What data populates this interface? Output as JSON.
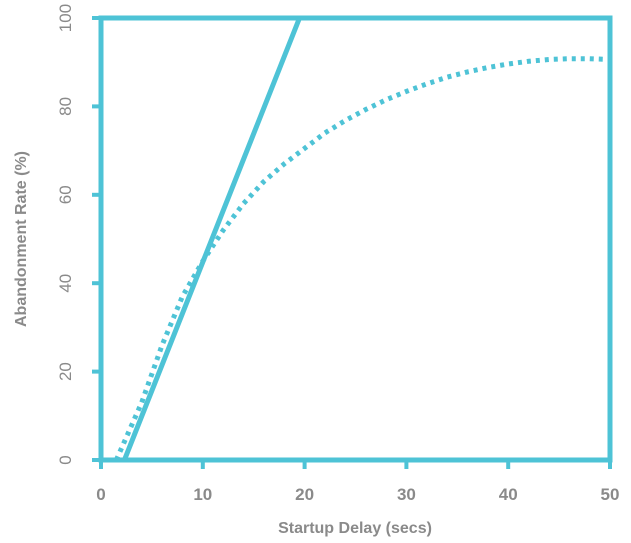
{
  "chart_data": {
    "type": "line",
    "title": "",
    "xlabel": "Startup Delay (secs)",
    "ylabel": "Abandonment Rate (%)",
    "xlim": [
      0,
      50
    ],
    "ylim": [
      0,
      100
    ],
    "x_ticks": [
      "0",
      "10",
      "20",
      "30",
      "40",
      "50"
    ],
    "y_ticks": [
      "0",
      "20",
      "40",
      "60",
      "80",
      "100"
    ],
    "grid": false,
    "legend": "none",
    "colors": {
      "series": "#4ec3d6",
      "axis": "#4ec3d6",
      "text": "#8a8a8a"
    },
    "series": [
      {
        "style": "solid",
        "x": [
          2.3,
          19.5
        ],
        "y": [
          0,
          100
        ]
      },
      {
        "style": "dotted",
        "x": [
          1.5,
          4,
          6,
          8,
          10,
          12,
          14,
          16,
          18,
          20,
          22,
          24,
          26,
          28,
          30,
          32,
          34,
          36,
          38,
          40,
          42,
          44,
          46,
          48,
          50
        ],
        "y": [
          0,
          13,
          26,
          37,
          45,
          52,
          58,
          63,
          67,
          70.5,
          74,
          76.8,
          79.3,
          81.5,
          83.4,
          85.1,
          86.6,
          87.8,
          88.8,
          89.6,
          90.2,
          90.6,
          90.8,
          90.8,
          90.6
        ]
      }
    ]
  }
}
